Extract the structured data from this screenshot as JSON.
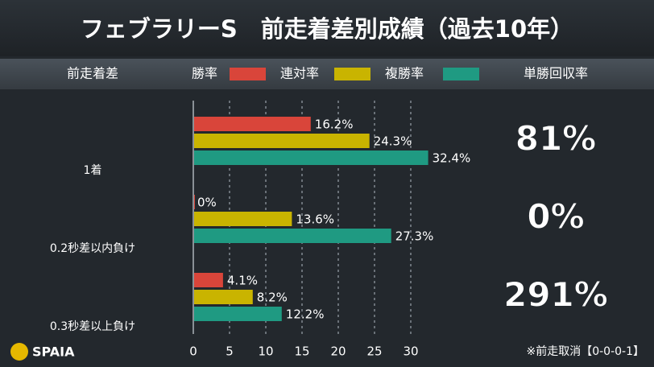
{
  "chart_data": {
    "type": "grouped-hbar",
    "title": "フェブラリーS　前走着差別成績（過去10年）",
    "category_header": "前走着差",
    "categories": [
      "1着",
      "0.2秒差以内負け",
      "0.3秒差以上負け"
    ],
    "series": [
      {
        "name": "勝率",
        "color": "#d9453a",
        "values": [
          16.2,
          0,
          4.1
        ],
        "value_labels": [
          "16.2%",
          "0%",
          "4.1%"
        ]
      },
      {
        "name": "連対率",
        "color": "#c9b400",
        "values": [
          24.3,
          13.6,
          8.2
        ],
        "value_labels": [
          "24.3%",
          "13.6%",
          "8.2%"
        ]
      },
      {
        "name": "複勝率",
        "color": "#1f9a82",
        "values": [
          32.4,
          27.3,
          12.2
        ],
        "value_labels": [
          "32.4%",
          "27.3%",
          "12.2%"
        ]
      }
    ],
    "xlim": [
      0,
      34
    ],
    "xticks": [
      0,
      5,
      10,
      15,
      20,
      25,
      30
    ],
    "grid": true,
    "return_rate": {
      "header": "単勝回収率",
      "values": [
        81,
        0,
        291
      ],
      "value_labels": [
        "81%",
        "0%",
        "291%"
      ]
    },
    "footnote": "※前走取消【0-0-0-1】",
    "logo": "SPAIA"
  }
}
